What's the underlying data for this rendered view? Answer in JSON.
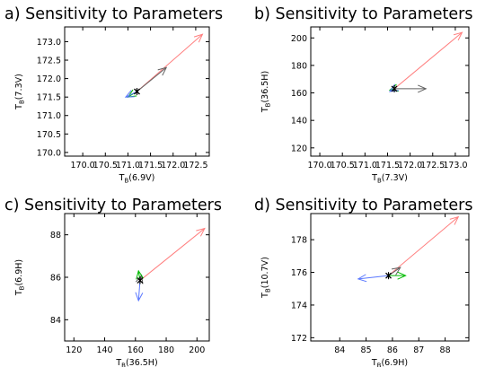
{
  "chart_data": [
    {
      "type": "line",
      "title": "a) Sensitivity to Parameters",
      "x_label": {
        "main": "T",
        "sub": "B",
        "rest": "(6.9V)"
      },
      "y_label": {
        "main": "T",
        "sub": "B",
        "rest": "(7.3V)"
      },
      "xlim": [
        169.6,
        172.8
      ],
      "ylim": [
        169.9,
        173.4
      ],
      "xticks": [
        "170.0",
        "170.5",
        "171.0",
        "171.5",
        "172.0",
        "172.5"
      ],
      "xtick_values": [
        170.0,
        170.5,
        171.0,
        171.5,
        172.0,
        172.5
      ],
      "yticks": [
        "170.0",
        "170.5",
        "171.0",
        "171.5",
        "172.0",
        "172.5",
        "173.0"
      ],
      "ytick_values": [
        170.0,
        170.5,
        171.0,
        171.5,
        172.0,
        172.5,
        173.0
      ],
      "origin": [
        171.2,
        171.65
      ],
      "arrows": [
        {
          "color": "#ff8080",
          "to": [
            172.65,
            173.2
          ]
        },
        {
          "color": "#606060",
          "to": [
            171.85,
            172.3
          ]
        },
        {
          "color": "#00bb00",
          "to": [
            171.0,
            171.5
          ]
        },
        {
          "color": "#5a78ff",
          "to": [
            170.95,
            171.5
          ]
        }
      ]
    },
    {
      "type": "line",
      "title": "b) Sensitivity to Parameters",
      "x_label": {
        "main": "T",
        "sub": "B",
        "rest": "(7.3V)"
      },
      "y_label": {
        "main": "T",
        "sub": "B",
        "rest": "(36.5H)"
      },
      "xlim": [
        169.8,
        173.3
      ],
      "ylim": [
        114,
        208
      ],
      "xticks": [
        "170.0",
        "170.5",
        "171.0",
        "171.5",
        "172.0",
        "172.5",
        "173.0"
      ],
      "xtick_values": [
        170.0,
        170.5,
        171.0,
        171.5,
        172.0,
        172.5,
        173.0
      ],
      "yticks": [
        "120",
        "140",
        "160",
        "180",
        "200"
      ],
      "ytick_values": [
        120,
        140,
        160,
        180,
        200
      ],
      "origin": [
        171.65,
        163
      ],
      "arrows": [
        {
          "color": "#ff8080",
          "to": [
            173.15,
            204
          ]
        },
        {
          "color": "#606060",
          "to": [
            172.35,
            163
          ]
        },
        {
          "color": "#00bb00",
          "to": [
            171.55,
            162
          ]
        },
        {
          "color": "#5a78ff",
          "to": [
            171.55,
            161
          ]
        }
      ]
    },
    {
      "type": "line",
      "title": "c) Sensitivity to Parameters",
      "x_label": {
        "main": "T",
        "sub": "B",
        "rest": "(36.5H)"
      },
      "y_label": {
        "main": "T",
        "sub": "B",
        "rest": "(6.9H)"
      },
      "xlim": [
        114,
        208
      ],
      "ylim": [
        83,
        89
      ],
      "xticks": [
        "120",
        "140",
        "160",
        "180",
        "200"
      ],
      "xtick_values": [
        120,
        140,
        160,
        180,
        200
      ],
      "yticks": [
        "84",
        "86",
        "88"
      ],
      "ytick_values": [
        84,
        86,
        88
      ],
      "origin": [
        163,
        85.85
      ],
      "arrows": [
        {
          "color": "#ff8080",
          "to": [
            205,
            88.3
          ]
        },
        {
          "color": "#606060",
          "to": [
            164,
            86.1
          ]
        },
        {
          "color": "#00bb00",
          "to": [
            162,
            86.3
          ]
        },
        {
          "color": "#5a78ff",
          "to": [
            162,
            84.9
          ]
        }
      ]
    },
    {
      "type": "line",
      "title": "d) Sensitivity to Parameters",
      "x_label": {
        "main": "T",
        "sub": "B",
        "rest": "(6.9H)"
      },
      "y_label": {
        "main": "T",
        "sub": "B",
        "rest": "(10.7V)"
      },
      "xlim": [
        82.9,
        88.9
      ],
      "ylim": [
        171.8,
        179.6
      ],
      "xticks": [
        "84",
        "85",
        "86",
        "87",
        "88"
      ],
      "xtick_values": [
        84,
        85,
        86,
        87,
        88
      ],
      "yticks": [
        "172",
        "174",
        "176",
        "178"
      ],
      "ytick_values": [
        172,
        174,
        176,
        178
      ],
      "origin": [
        85.85,
        175.8
      ],
      "arrows": [
        {
          "color": "#ff8080",
          "to": [
            88.5,
            179.4
          ]
        },
        {
          "color": "#606060",
          "to": [
            86.3,
            176.3
          ]
        },
        {
          "color": "#00bb00",
          "to": [
            86.5,
            175.8
          ]
        },
        {
          "color": "#5a78ff",
          "to": [
            84.7,
            175.6
          ]
        }
      ]
    }
  ]
}
